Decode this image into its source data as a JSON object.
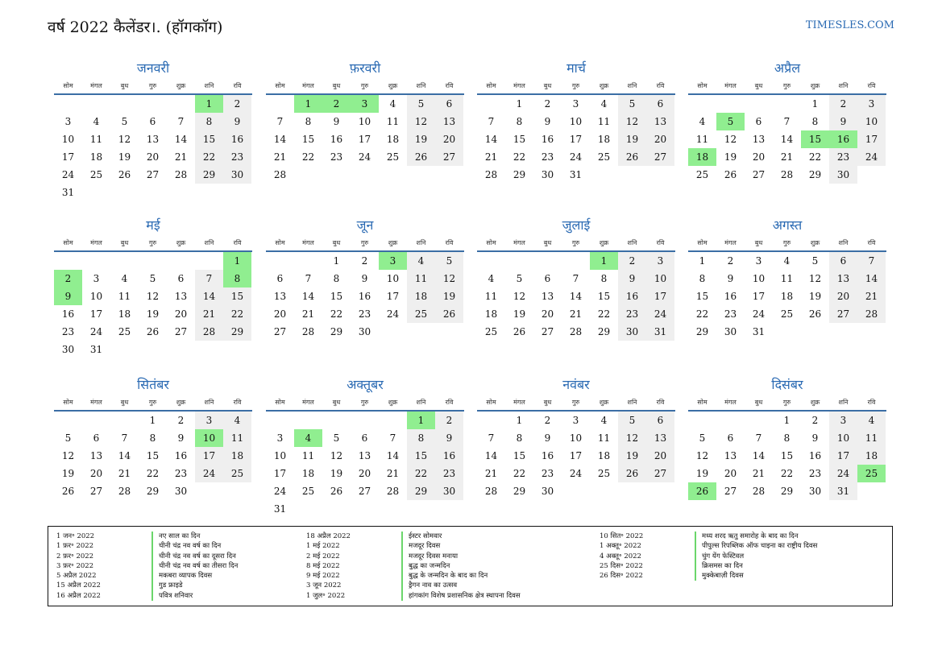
{
  "header": {
    "title": "वर्ष 2022 कैलेंडर।. (हॉगकॉग)",
    "site": "TIMESLES.COM"
  },
  "weekdays": [
    "सोम",
    "मंगल",
    "बुध",
    "गुरु",
    "शुक्र",
    "शनि",
    "रवि"
  ],
  "months": [
    {
      "name": "जनवरी",
      "offset": 5,
      "days": 31,
      "holidays": [
        1
      ]
    },
    {
      "name": "फ़रवरी",
      "offset": 1,
      "days": 28,
      "holidays": [
        1,
        2,
        3
      ]
    },
    {
      "name": "मार्च",
      "offset": 1,
      "days": 31,
      "holidays": []
    },
    {
      "name": "अप्रैल",
      "offset": 4,
      "days": 30,
      "holidays": [
        5,
        15,
        16,
        18
      ]
    },
    {
      "name": "मई",
      "offset": 6,
      "days": 31,
      "holidays": [
        1,
        2,
        8,
        9
      ]
    },
    {
      "name": "जून",
      "offset": 2,
      "days": 30,
      "holidays": [
        3
      ]
    },
    {
      "name": "जुलाई",
      "offset": 4,
      "days": 31,
      "holidays": [
        1
      ]
    },
    {
      "name": "अगस्त",
      "offset": 0,
      "days": 31,
      "holidays": []
    },
    {
      "name": "सितंबर",
      "offset": 3,
      "days": 30,
      "holidays": [
        10
      ]
    },
    {
      "name": "अक्तूबर",
      "offset": 5,
      "days": 31,
      "holidays": [
        1,
        4
      ]
    },
    {
      "name": "नवंबर",
      "offset": 1,
      "days": 30,
      "holidays": []
    },
    {
      "name": "दिसंबर",
      "offset": 3,
      "days": 31,
      "holidays": [
        25,
        26
      ]
    }
  ],
  "holiday_list": [
    [
      {
        "date": "1 जन॰ 2022",
        "name": "नए साल का दिन"
      },
      {
        "date": "1 फ़र॰ 2022",
        "name": "चीनी चंद्र नव वर्ष का दिन"
      },
      {
        "date": "2 फ़र॰ 2022",
        "name": "चीनी चंद्र नव वर्ष का दूसरा दिन"
      },
      {
        "date": "3 फ़र॰ 2022",
        "name": "चीनी चंद्र नव वर्ष का तीसरा दिन"
      },
      {
        "date": "5 अप्रैल 2022",
        "name": "मकबरा व्यापक दिवस"
      },
      {
        "date": "15 अप्रैल 2022",
        "name": "गुड फ्राइडे"
      },
      {
        "date": "16 अप्रैल 2022",
        "name": "पवित्र शनिवार"
      }
    ],
    [
      {
        "date": "18 अप्रैल 2022",
        "name": "ईस्टर सोमवार"
      },
      {
        "date": "1 मई 2022",
        "name": "मजदूर दिवस"
      },
      {
        "date": "2 मई 2022",
        "name": "मजदूर दिवस मनाया"
      },
      {
        "date": "8 मई 2022",
        "name": "बुद्ध का जन्मदिन"
      },
      {
        "date": "9 मई 2022",
        "name": "बुद्ध के जन्मदिन के बाद का दिन"
      },
      {
        "date": "3 जून 2022",
        "name": "ड्रैगन नाव का उत्सव"
      },
      {
        "date": "1 जुल॰ 2022",
        "name": "हांगकांग विशेष प्रशासनिक क्षेत्र स्थापना दिवस"
      }
    ],
    [
      {
        "date": "10 सित॰ 2022",
        "name": "मध्य शरद ऋतु समारोह के बाद का दिन"
      },
      {
        "date": "1 अक्तू॰ 2022",
        "name": "पीपुल्स रिपब्लिक ऑफ चाइना का राष्ट्रीय दिवस"
      },
      {
        "date": "4 अक्तू॰ 2022",
        "name": "चुंग येंग फेस्टिवल"
      },
      {
        "date": "25 दिस॰ 2022",
        "name": "क्रिसमस का दिन"
      },
      {
        "date": "26 दिस॰ 2022",
        "name": "मुक्केबाज़ी दिवस"
      }
    ]
  ]
}
